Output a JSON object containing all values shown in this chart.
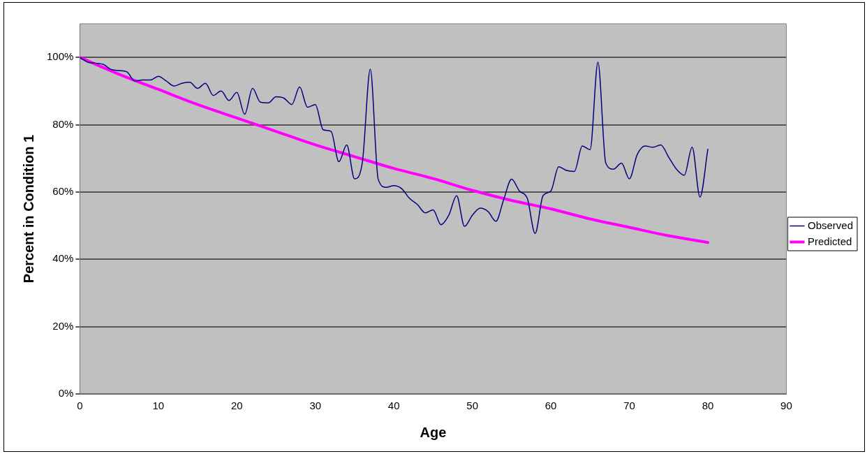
{
  "chart_data": {
    "type": "line",
    "xlabel": "Age",
    "ylabel": "Percent in Condition 1",
    "xlim": [
      0,
      90
    ],
    "xticks": [
      0,
      10,
      20,
      30,
      40,
      50,
      60,
      70,
      80,
      90
    ],
    "ylim": [
      0,
      110
    ],
    "yticks": [
      {
        "value": 0,
        "label": "0%"
      },
      {
        "value": 20,
        "label": "20%"
      },
      {
        "value": 40,
        "label": "40%"
      },
      {
        "value": 60,
        "label": "60%"
      },
      {
        "value": 80,
        "label": "80%"
      },
      {
        "value": 100,
        "label": "100%"
      }
    ],
    "grid": "y",
    "legend": "right",
    "marker": "none",
    "line_style": "solid",
    "series": [
      {
        "name": "Observed",
        "color": "#000080",
        "x": [
          0,
          1,
          2,
          3,
          4,
          5,
          6,
          7,
          8,
          9,
          10,
          11,
          12,
          13,
          14,
          15,
          16,
          17,
          18,
          19,
          20,
          21,
          22,
          23,
          24,
          25,
          26,
          27,
          28,
          29,
          30,
          31,
          32,
          33,
          34,
          35,
          36,
          37,
          38,
          39,
          40,
          41,
          42,
          43,
          44,
          45,
          46,
          47,
          48,
          49,
          50,
          51,
          52,
          53,
          54,
          55,
          56,
          57,
          58,
          59,
          60,
          61,
          62,
          63,
          64,
          65,
          66,
          67,
          68,
          69,
          70,
          71,
          72,
          73,
          74,
          75,
          76,
          77,
          78,
          79,
          80
        ],
        "values": [
          100,
          98.6,
          98.3,
          97.9,
          96.4,
          96.1,
          95.7,
          93,
          93.3,
          93.3,
          94.4,
          93,
          91.5,
          92.3,
          92.6,
          90.8,
          92.3,
          88.7,
          90,
          87.2,
          89.6,
          83.1,
          90.8,
          86.7,
          86.5,
          88.3,
          87.9,
          86,
          91.2,
          85.2,
          86,
          78.5,
          78,
          69,
          74,
          63.9,
          69,
          96.5,
          63.9,
          61.4,
          61.9,
          61,
          58.1,
          56.3,
          53.8,
          54.7,
          50.3,
          53.1,
          58.9,
          49.8,
          53.1,
          55.2,
          54.2,
          51.3,
          57.8,
          63.8,
          60.3,
          58.1,
          47.7,
          58.9,
          60.3,
          67.5,
          66.4,
          66.1,
          73.7,
          72.6,
          98.6,
          68.6,
          66.8,
          68.6,
          63.9,
          71.1,
          73.7,
          73.3,
          74,
          70.4,
          66.8,
          65,
          73.3,
          58.5,
          72.7
        ]
      },
      {
        "name": "Predicted",
        "color": "#ff00ff",
        "x": [
          0,
          5,
          10,
          15,
          20,
          25,
          30,
          35,
          40,
          45,
          50,
          55,
          60,
          65,
          70,
          75,
          80
        ],
        "values": [
          100,
          95,
          90.5,
          86,
          82,
          78,
          74,
          70.5,
          67,
          64,
          60.5,
          57.5,
          55,
          52,
          49.5,
          47,
          45
        ]
      }
    ]
  }
}
